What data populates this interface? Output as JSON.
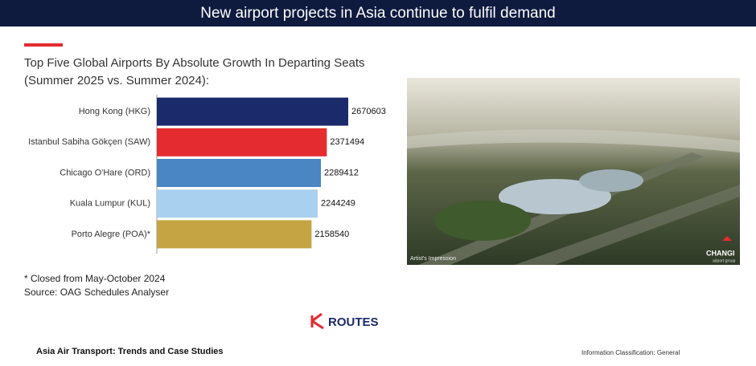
{
  "header": {
    "title": "New airport projects in Asia continue to fulfil demand"
  },
  "chart_data": {
    "type": "bar",
    "orientation": "horizontal",
    "title": "Top Five Global Airports By Absolute Growth In Departing Seats (Summer 2025 vs. Summer 2024):",
    "categories": [
      "Hong Kong (HKG)",
      "Istanbul Sabiha Gökçen (SAW)",
      "Chicago O'Hare (ORD)",
      "Kuala Lumpur (KUL)",
      "Porto Alegre (POA)*"
    ],
    "values": [
      2670603,
      2371494,
      2289412,
      2244249,
      2158540
    ],
    "colors": [
      "#1b2a6b",
      "#e42b2f",
      "#4a86c4",
      "#a9d0ef",
      "#c5a444"
    ]
  },
  "notes": [
    "* Closed from May-October 2024",
    "Source: OAG Schedules Analyser"
  ],
  "logo": {
    "text": "ROUTES"
  },
  "image": {
    "caption": "Artist's Impression",
    "brand": "CHANGI",
    "brand_sub": "airport group"
  },
  "footer": {
    "left": "Asia Air Transport: Trends and Case Studies",
    "right": "Information Classification: General"
  }
}
